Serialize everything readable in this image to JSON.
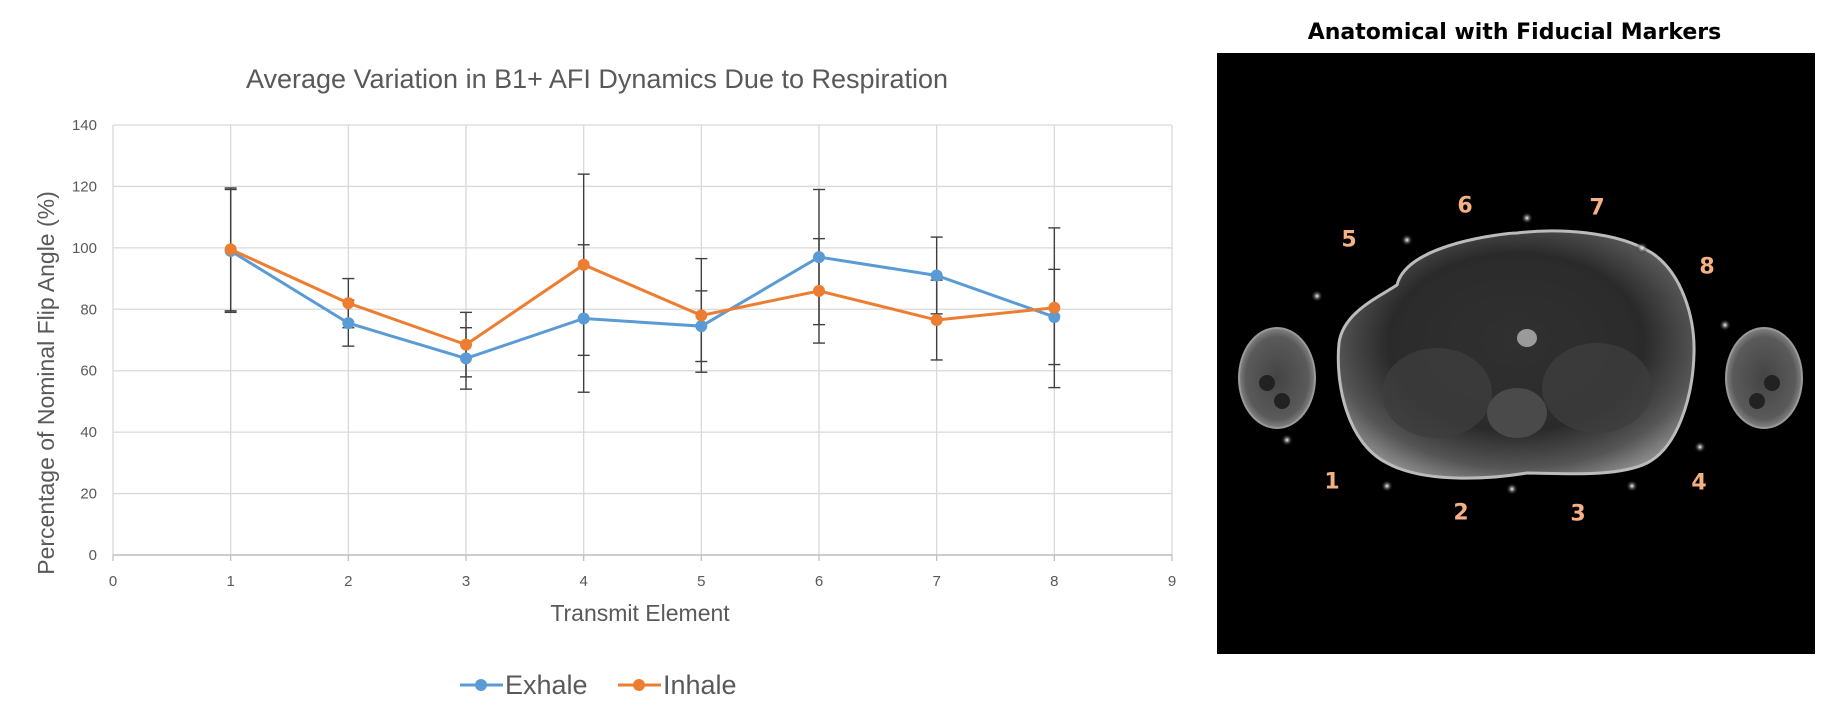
{
  "chart_data": {
    "type": "line",
    "title": "Average Variation in B1+ AFI Dynamics Due to Respiration",
    "xlabel": "Transmit Element",
    "ylabel": "Percentage of Nominal Flip Angle (%)",
    "xlim": [
      0,
      9
    ],
    "ylim": [
      0,
      140
    ],
    "xticks": [
      0,
      1,
      2,
      3,
      4,
      5,
      6,
      7,
      8,
      9
    ],
    "yticks": [
      0,
      20,
      40,
      60,
      80,
      100,
      120,
      140
    ],
    "grid": true,
    "legend_position": "bottom-center",
    "x": [
      1,
      2,
      3,
      4,
      5,
      6,
      7,
      8
    ],
    "series": [
      {
        "name": "Exhale",
        "color": "#5b9bd5",
        "values": [
          99,
          75.5,
          64,
          77,
          74.5,
          97,
          91,
          77.5
        ],
        "error": [
          20,
          7.5,
          10,
          24,
          11.5,
          22,
          12.5,
          15.5
        ]
      },
      {
        "name": "Inhale",
        "color": "#ed7d31",
        "values": [
          99.5,
          82,
          68.5,
          94.5,
          78,
          86,
          76.5,
          80.5
        ],
        "error": [
          20,
          8,
          10.5,
          29.5,
          18.5,
          17,
          13,
          26
        ]
      }
    ]
  },
  "image_panel": {
    "title": "Anatomical with Fiducial Markers",
    "markers": [
      "1",
      "2",
      "3",
      "4",
      "5",
      "6",
      "7",
      "8"
    ]
  }
}
